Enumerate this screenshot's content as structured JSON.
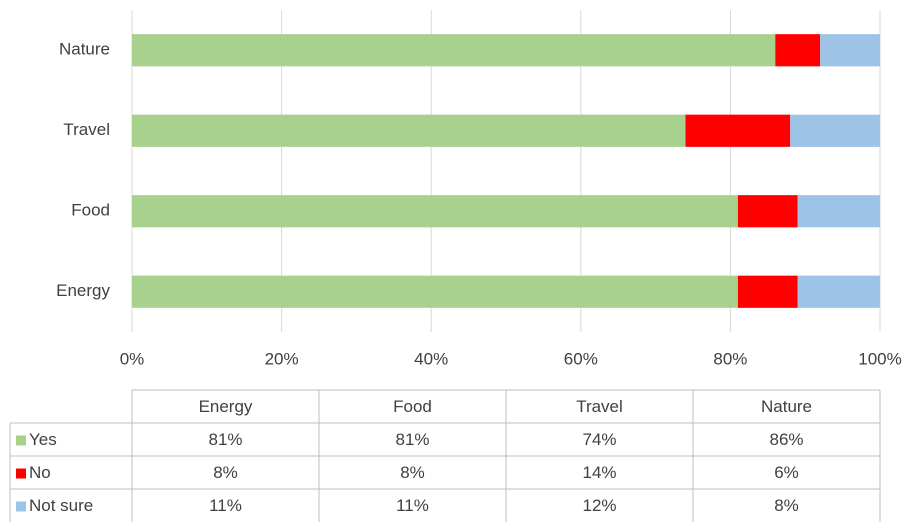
{
  "chart_data": {
    "type": "bar",
    "orientation": "horizontal",
    "stacked": true,
    "categories": [
      "Energy",
      "Food",
      "Travel",
      "Nature"
    ],
    "series": [
      {
        "name": "Yes",
        "color": "#a9d18e",
        "values": [
          81,
          81,
          74,
          86
        ],
        "value_labels": [
          "81%",
          "81%",
          "74%",
          "86%"
        ]
      },
      {
        "name": "No",
        "color": "#ff0000",
        "values": [
          8,
          8,
          14,
          6
        ],
        "value_labels": [
          "8%",
          "8%",
          "14%",
          "6%"
        ]
      },
      {
        "name": "Not sure",
        "color": "#9dc3e6",
        "values": [
          11,
          11,
          12,
          8
        ],
        "value_labels": [
          "11%",
          "11%",
          "12%",
          "8%"
        ]
      }
    ],
    "xlim": [
      0,
      100
    ],
    "xticks": [
      {
        "value": 0,
        "label": "0%"
      },
      {
        "value": 20,
        "label": "20%"
      },
      {
        "value": 40,
        "label": "40%"
      },
      {
        "value": 60,
        "label": "60%"
      },
      {
        "value": 80,
        "label": "80%"
      },
      {
        "value": 100,
        "label": "100%"
      }
    ],
    "grid": true,
    "data_table": true
  }
}
